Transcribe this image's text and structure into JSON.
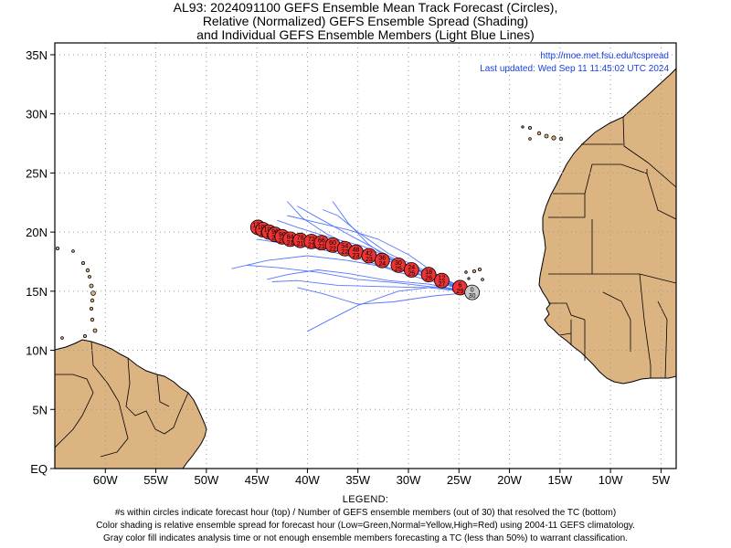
{
  "title": {
    "line1": "AL93: 2024091100 GEFS Ensemble Mean Track Forecast (Circles),",
    "line2": "Relative (Normalized) GEFS Ensemble Spread (Shading)",
    "line3": "and Individual GEFS Ensemble Members (Light Blue Lines)"
  },
  "info": {
    "url": "http://moe.met.fsu.edu/tcspread",
    "updated": "Last updated: Wed Sep 11 11:45:02 UTC 2024"
  },
  "axes": {
    "lat_labels": [
      "EQ",
      "5N",
      "10N",
      "15N",
      "20N",
      "25N",
      "30N",
      "35N"
    ],
    "lat_values": [
      0,
      5,
      10,
      15,
      20,
      25,
      30,
      35
    ],
    "lon_labels": [
      "60W",
      "55W",
      "50W",
      "45W",
      "40W",
      "35W",
      "30W",
      "25W",
      "20W",
      "15W",
      "10W",
      "5W"
    ],
    "lon_values": [
      -60,
      -55,
      -50,
      -45,
      -40,
      -35,
      -30,
      -25,
      -20,
      -15,
      -10,
      -5
    ],
    "lon_range": [
      -65,
      -3.5
    ],
    "lat_range": [
      0,
      36
    ],
    "grid": true
  },
  "colors": {
    "land": "#dcb482",
    "ocean": "#ffffff",
    "member_track": "#5577ff",
    "circle_fill": "#ee3333",
    "analysis_fill": "#c8c8c8",
    "url_text": "#1a3fe0"
  },
  "chart_data": {
    "type": "scatter",
    "mean_track": [
      {
        "hour": "0",
        "members": "30",
        "lon": -23.7,
        "lat": 14.9,
        "analysis": true
      },
      {
        "hour": "6",
        "members": "29",
        "lon": -24.9,
        "lat": 15.3
      },
      {
        "hour": "12",
        "members": "27",
        "lon": -26.7,
        "lat": 15.9
      },
      {
        "hour": "18",
        "members": "26",
        "lon": -28.0,
        "lat": 16.4
      },
      {
        "hour": "24",
        "members": "25",
        "lon": -29.7,
        "lat": 16.8
      },
      {
        "hour": "30",
        "members": "25",
        "lon": -31.0,
        "lat": 17.2
      },
      {
        "hour": "36",
        "members": "24",
        "lon": -32.6,
        "lat": 17.6
      },
      {
        "hour": "42",
        "members": "23",
        "lon": -33.9,
        "lat": 18.0
      },
      {
        "hour": "48",
        "members": "23",
        "lon": -35.2,
        "lat": 18.3
      },
      {
        "hour": "54",
        "members": "22",
        "lon": -36.3,
        "lat": 18.6
      },
      {
        "hour": "60",
        "members": "22",
        "lon": -37.5,
        "lat": 18.9
      },
      {
        "hour": "66",
        "members": "21",
        "lon": -38.6,
        "lat": 19.1
      },
      {
        "hour": "72",
        "members": "21",
        "lon": -39.6,
        "lat": 19.2
      },
      {
        "hour": "78",
        "members": "21",
        "lon": -40.7,
        "lat": 19.3
      },
      {
        "hour": "84",
        "members": "21",
        "lon": -41.7,
        "lat": 19.4
      },
      {
        "hour": "90",
        "members": "20",
        "lon": -42.5,
        "lat": 19.6
      },
      {
        "hour": "96",
        "members": "20",
        "lon": -43.2,
        "lat": 19.8
      },
      {
        "hour": "102",
        "members": "19",
        "lon": -43.8,
        "lat": 20.0
      },
      {
        "hour": "108",
        "members": "19",
        "lon": -44.4,
        "lat": 20.2
      },
      {
        "hour": "120",
        "members": "18",
        "lon": -44.9,
        "lat": 20.4
      }
    ],
    "member_tracks": [
      [
        [
          -23.7,
          14.9
        ],
        [
          -27,
          16.2
        ],
        [
          -31,
          17.5
        ],
        [
          -35,
          18.6
        ],
        [
          -38,
          19.8
        ],
        [
          -40.5,
          21.2
        ],
        [
          -42,
          22.6
        ]
      ],
      [
        [
          -23.7,
          14.9
        ],
        [
          -27,
          16.0
        ],
        [
          -31,
          17.3
        ],
        [
          -35,
          18.3
        ],
        [
          -39,
          19.1
        ],
        [
          -43,
          19.9
        ],
        [
          -45.5,
          20.4
        ]
      ],
      [
        [
          -23.7,
          14.9
        ],
        [
          -28,
          16.2
        ],
        [
          -32,
          17.0
        ],
        [
          -36,
          17.6
        ],
        [
          -40,
          18.0
        ],
        [
          -44,
          17.6
        ],
        [
          -47.5,
          16.9
        ]
      ],
      [
        [
          -23.7,
          14.9
        ],
        [
          -28,
          15.6
        ],
        [
          -32,
          15.9
        ],
        [
          -36,
          16.5
        ],
        [
          -39,
          16.8
        ],
        [
          -42,
          16.4
        ],
        [
          -44,
          16.0
        ]
      ],
      [
        [
          -23.7,
          14.9
        ],
        [
          -27,
          15.4
        ],
        [
          -31,
          15.0
        ],
        [
          -35,
          13.8
        ],
        [
          -38,
          12.5
        ],
        [
          -40,
          11.6
        ]
      ],
      [
        [
          -23.7,
          14.9
        ],
        [
          -27.5,
          14.6
        ],
        [
          -31.5,
          14.1
        ],
        [
          -35,
          13.9
        ],
        [
          -38.5,
          14.8
        ],
        [
          -41,
          15.3
        ]
      ],
      [
        [
          -23.7,
          14.9
        ],
        [
          -27,
          15.8
        ],
        [
          -31,
          17.2
        ],
        [
          -34,
          19.0
        ],
        [
          -36,
          20.8
        ],
        [
          -37.5,
          22.6
        ]
      ],
      [
        [
          -23.7,
          14.9
        ],
        [
          -28,
          16.4
        ],
        [
          -32,
          18.0
        ],
        [
          -35.5,
          19.6
        ],
        [
          -38.5,
          21.0
        ],
        [
          -41,
          22.2
        ]
      ],
      [
        [
          -23.7,
          14.9
        ],
        [
          -27,
          16.3
        ],
        [
          -30,
          18.1
        ],
        [
          -33,
          19.4
        ],
        [
          -36,
          20.2
        ],
        [
          -39,
          20.8
        ],
        [
          -42,
          21.4
        ]
      ],
      [
        [
          -23.7,
          14.9
        ],
        [
          -27,
          15.7
        ],
        [
          -31,
          16.6
        ],
        [
          -35,
          17.8
        ],
        [
          -39,
          18.6
        ],
        [
          -42,
          19.0
        ],
        [
          -45,
          19.4
        ]
      ],
      [
        [
          -23.7,
          14.9
        ],
        [
          -27,
          15.3
        ],
        [
          -31,
          15.7
        ],
        [
          -35,
          16.0
        ],
        [
          -39,
          16.6
        ],
        [
          -43,
          17.0
        ],
        [
          -46,
          17.2
        ]
      ],
      [
        [
          -23.7,
          14.9
        ],
        [
          -28,
          15.3
        ],
        [
          -33,
          15.4
        ],
        [
          -37,
          15.5
        ],
        [
          -41,
          15.9
        ],
        [
          -43.5,
          15.8
        ]
      ],
      [
        [
          -23.7,
          14.9
        ],
        [
          -28,
          16.6
        ],
        [
          -32,
          18.2
        ],
        [
          -35,
          20.0
        ],
        [
          -37,
          21.4
        ],
        [
          -38.5,
          21.9
        ]
      ],
      [
        [
          -23.7,
          14.9
        ],
        [
          -27,
          16.0
        ],
        [
          -31,
          17.5
        ],
        [
          -34.5,
          18.8
        ],
        [
          -38,
          19.6
        ],
        [
          -41,
          20.4
        ],
        [
          -43,
          21.0
        ]
      ]
    ],
    "land_color_note": "land shown in tan"
  },
  "legend": {
    "heading": "LEGEND:",
    "line1": "#s within circles indicate forecast hour (top) / Number of GEFS ensemble members (out of 30) that resolved the TC (bottom)",
    "line2": "Color shading is relative ensemble spread for forecast hour (Low=Green,Normal=Yellow,High=Red) using 2004-11 GEFS climatology.",
    "line3": "Gray color fill indicates analysis time or not enough ensemble members forecasting a TC (less than 50%) to warrant classification."
  }
}
